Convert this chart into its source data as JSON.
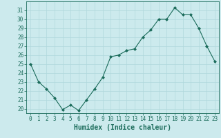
{
  "x": [
    0,
    1,
    2,
    3,
    4,
    5,
    6,
    7,
    8,
    9,
    10,
    11,
    12,
    13,
    14,
    15,
    16,
    17,
    18,
    19,
    20,
    21,
    22,
    23
  ],
  "y": [
    25.0,
    23.0,
    22.2,
    21.2,
    19.9,
    20.4,
    19.8,
    21.0,
    22.2,
    23.5,
    25.8,
    26.0,
    26.5,
    26.7,
    28.0,
    28.8,
    30.0,
    30.0,
    31.3,
    30.5,
    30.5,
    29.0,
    27.0,
    25.3
  ],
  "line_color": "#1a6b5a",
  "marker": "D",
  "marker_size": 2,
  "bg_color": "#cceaed",
  "grid_color": "#b0d8dc",
  "xlabel": "Humidex (Indice chaleur)",
  "ylim": [
    19.5,
    32
  ],
  "xlim": [
    -0.5,
    23.5
  ],
  "yticks": [
    20,
    21,
    22,
    23,
    24,
    25,
    26,
    27,
    28,
    29,
    30,
    31
  ],
  "xticks": [
    0,
    1,
    2,
    3,
    4,
    5,
    6,
    7,
    8,
    9,
    10,
    11,
    12,
    13,
    14,
    15,
    16,
    17,
    18,
    19,
    20,
    21,
    22,
    23
  ],
  "tick_color": "#1a6b5a",
  "label_color": "#1a6b5a",
  "xlabel_fontsize": 7,
  "tick_fontsize": 5.5
}
